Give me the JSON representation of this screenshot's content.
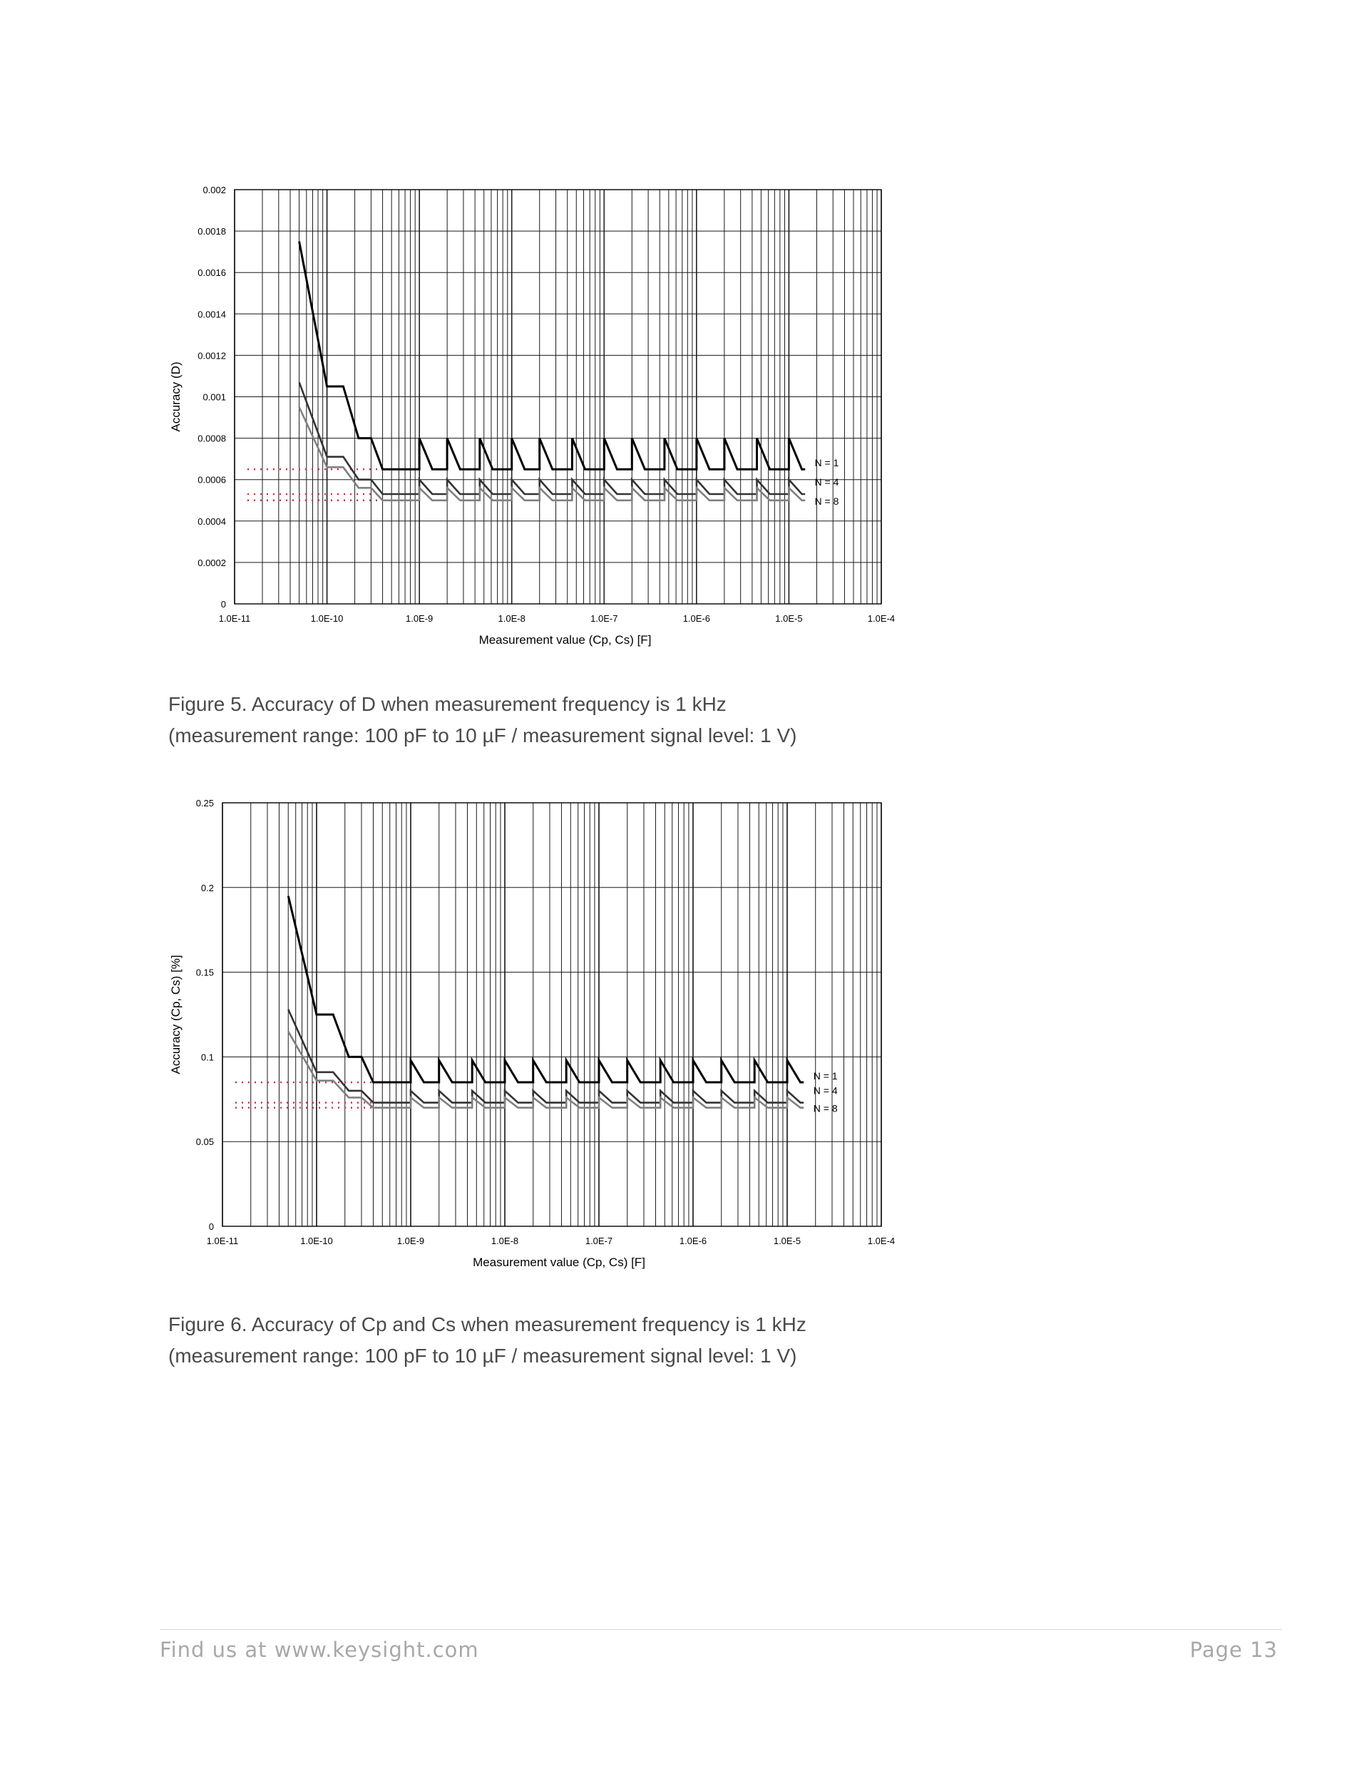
{
  "captions": {
    "fig5_line1": "Figure 5. Accuracy of D when measurement frequency is 1 kHz",
    "fig5_line2": "(measurement range: 100 pF to 10 µF / measurement signal level: 1 V)",
    "fig6_line1": "Figure 6. Accuracy of Cp and Cs when measurement frequency is 1 kHz",
    "fig6_line2": "(measurement range: 100 pF to 10 µF / measurement signal level: 1 V)"
  },
  "footer": {
    "left": "Find us at www.keysight.com",
    "right": "Page 13"
  },
  "chart_data": [
    {
      "type": "line",
      "xscale": "log",
      "xlabel": "Measurement value (Cp, Cs) [F]",
      "ylabel": "Accuracy (D)",
      "xlim": [
        1e-11,
        0.0001
      ],
      "ylim": [
        0,
        0.002
      ],
      "xticks": [
        "1.0E-11",
        "1.0E-10",
        "1.0E-9",
        "1.0E-8",
        "1.0E-7",
        "1.0E-6",
        "1.0E-5",
        "1.0E-4"
      ],
      "yticks": [
        "0",
        "0.0002",
        "0.0004",
        "0.0006",
        "0.0008",
        "0.001",
        "0.0012",
        "0.0014",
        "0.0016",
        "0.0018",
        "0.002"
      ],
      "grid": true,
      "series": [
        {
          "name": "N = 1",
          "color": "#000000",
          "floor": 0.00065,
          "start": 0.00175,
          "steps": [
            [
              1e-10,
              0.00105
            ],
            [
              1.5e-10,
              0.00105
            ],
            [
              2.2e-10,
              0.0008
            ],
            [
              3e-10,
              0.0008
            ],
            [
              4e-10,
              0.00065
            ]
          ],
          "peak": 0.0008
        },
        {
          "name": "N = 4",
          "color": "#333333",
          "floor": 0.00053,
          "start": 0.00107,
          "steps": [
            [
              1e-10,
              0.00071
            ],
            [
              1.5e-10,
              0.00071
            ],
            [
              2.2e-10,
              0.0006
            ],
            [
              3e-10,
              0.0006
            ],
            [
              4e-10,
              0.00053
            ]
          ],
          "peak": 0.0006
        },
        {
          "name": "N = 8",
          "color": "#808080",
          "floor": 0.0005,
          "start": 0.00095,
          "steps": [
            [
              1e-10,
              0.00066
            ],
            [
              1.5e-10,
              0.00066
            ],
            [
              2.2e-10,
              0.00056
            ],
            [
              3e-10,
              0.00056
            ],
            [
              4e-10,
              0.0005
            ]
          ],
          "peak": 0.00056
        }
      ],
      "reference_lines": [
        0.00065,
        0.00053,
        0.0005
      ],
      "legend": [
        "N = 1",
        "N = 4",
        "N = 8"
      ]
    },
    {
      "type": "line",
      "xscale": "log",
      "xlabel": "Measurement value (Cp, Cs) [F]",
      "ylabel": "Accuracy (Cp, Cs) [%]",
      "xlim": [
        1e-11,
        0.0001
      ],
      "ylim": [
        0,
        0.25
      ],
      "xticks": [
        "1.0E-11",
        "1.0E-10",
        "1.0E-9",
        "1.0E-8",
        "1.0E-7",
        "1.0E-6",
        "1.0E-5",
        "1.0E-4"
      ],
      "yticks": [
        "0",
        "0.05",
        "0.1",
        "0.15",
        "0.2",
        "0.25"
      ],
      "grid": true,
      "series": [
        {
          "name": "N = 1",
          "color": "#000000",
          "floor": 0.085,
          "start": 0.195,
          "steps": [
            [
              1e-10,
              0.125
            ],
            [
              1.5e-10,
              0.125
            ],
            [
              2.2e-10,
              0.1
            ],
            [
              3e-10,
              0.1
            ],
            [
              4e-10,
              0.085
            ]
          ],
          "peak": 0.098
        },
        {
          "name": "N = 4",
          "color": "#333333",
          "floor": 0.073,
          "start": 0.128,
          "steps": [
            [
              1e-10,
              0.091
            ],
            [
              1.5e-10,
              0.091
            ],
            [
              2.2e-10,
              0.08
            ],
            [
              3e-10,
              0.08
            ],
            [
              4e-10,
              0.073
            ]
          ],
          "peak": 0.08
        },
        {
          "name": "N = 8",
          "color": "#808080",
          "floor": 0.07,
          "start": 0.115,
          "steps": [
            [
              1e-10,
              0.086
            ],
            [
              1.5e-10,
              0.086
            ],
            [
              2.2e-10,
              0.076
            ],
            [
              3e-10,
              0.076
            ],
            [
              4e-10,
              0.07
            ]
          ],
          "peak": 0.076
        }
      ],
      "reference_lines": [
        0.085,
        0.073,
        0.07
      ],
      "legend": [
        "N = 1",
        "N = 4",
        "N = 8"
      ]
    }
  ]
}
